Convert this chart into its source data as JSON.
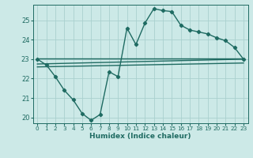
{
  "xlabel": "Humidex (Indice chaleur)",
  "ylabel": "",
  "bg_color": "#cce9e7",
  "grid_color": "#aad0ce",
  "line_color": "#1f6b62",
  "xlim": [
    -0.5,
    23.5
  ],
  "ylim": [
    19.7,
    25.8
  ],
  "yticks": [
    20,
    21,
    22,
    23,
    24,
    25
  ],
  "xticks": [
    0,
    1,
    2,
    3,
    4,
    5,
    6,
    7,
    8,
    9,
    10,
    11,
    12,
    13,
    14,
    15,
    16,
    17,
    18,
    19,
    20,
    21,
    22,
    23
  ],
  "line1_x": [
    0,
    1,
    2,
    3,
    4,
    5,
    6,
    7,
    8,
    9,
    10,
    11,
    12,
    13,
    14,
    15,
    16,
    17,
    18,
    19,
    20,
    21,
    22,
    23
  ],
  "line1_y": [
    23.0,
    22.7,
    22.1,
    21.4,
    20.9,
    20.2,
    19.85,
    20.15,
    22.35,
    22.1,
    24.6,
    23.75,
    24.85,
    25.6,
    25.5,
    25.45,
    24.75,
    24.5,
    24.4,
    24.3,
    24.1,
    23.95,
    23.6,
    23.0
  ],
  "line2_x": [
    0,
    23
  ],
  "line2_y": [
    23.05,
    23.05
  ],
  "line3_x": [
    0,
    23
  ],
  "line3_y": [
    22.75,
    23.0
  ],
  "line4_x": [
    0,
    23
  ],
  "line4_y": [
    22.6,
    22.8
  ]
}
